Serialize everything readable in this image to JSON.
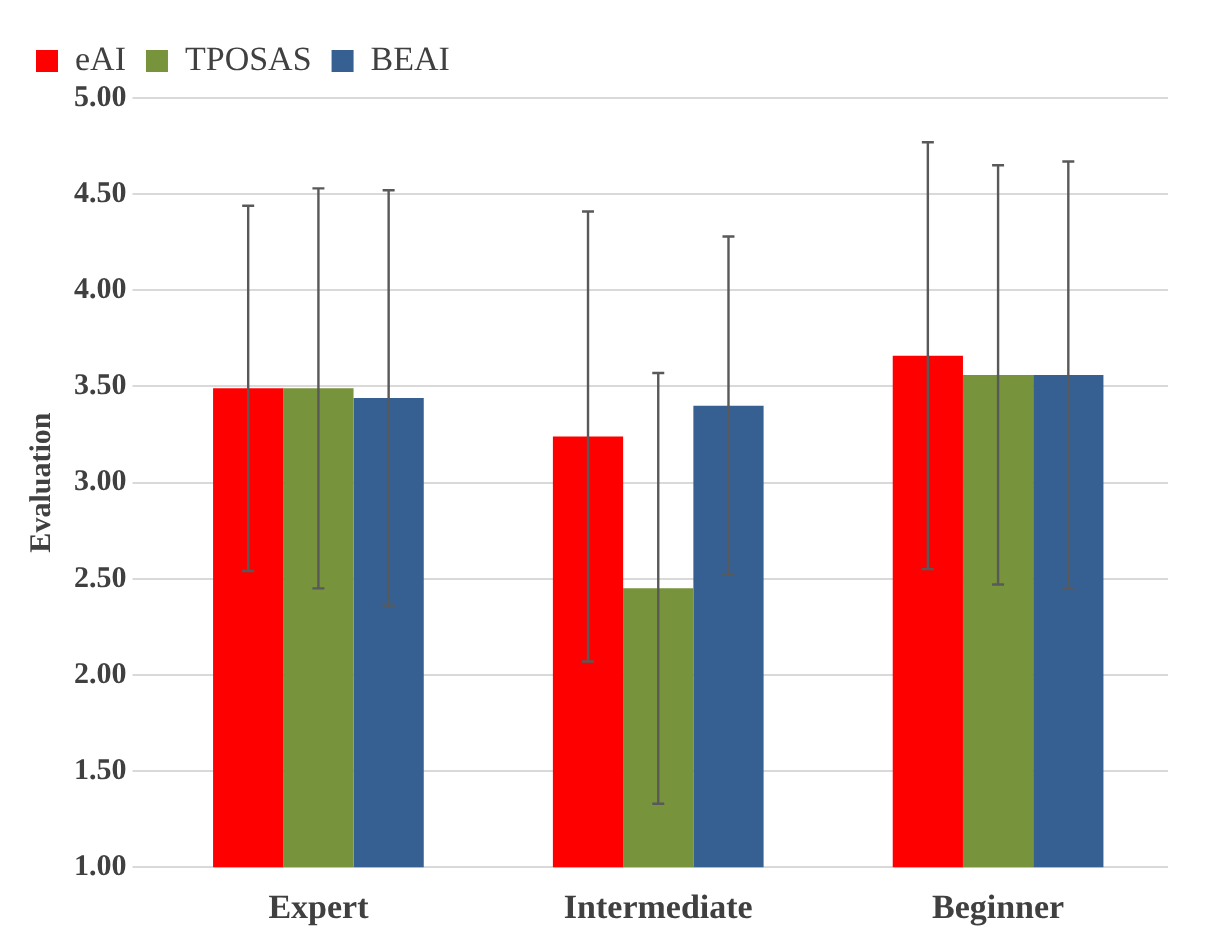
{
  "chart_data": {
    "type": "bar",
    "ylabel": "Evaluation",
    "categories": [
      "Expert",
      "Intermediate",
      "Beginner"
    ],
    "series": [
      {
        "name": "eAI",
        "color": "#ff0000",
        "values": [
          3.49,
          3.24,
          3.66
        ],
        "errors": [
          0.95,
          1.17,
          1.11
        ]
      },
      {
        "name": "TPOSAS",
        "color": "#77933c",
        "values": [
          3.49,
          2.45,
          3.56
        ],
        "errors": [
          1.04,
          1.12,
          1.09
        ]
      },
      {
        "name": "BEAI",
        "color": "#376092",
        "values": [
          3.44,
          3.4,
          3.56
        ],
        "errors": [
          1.08,
          0.88,
          1.11
        ]
      }
    ],
    "ylim": [
      1,
      5
    ],
    "yticks": [
      {
        "value": 1,
        "label": "1.00"
      },
      {
        "value": 1.5,
        "label": "1.50"
      },
      {
        "value": 2,
        "label": "2.00"
      },
      {
        "value": 2.5,
        "label": "2.50"
      },
      {
        "value": 3,
        "label": "3.00"
      },
      {
        "value": 3.5,
        "label": "3.50"
      },
      {
        "value": 4,
        "label": "4.00"
      },
      {
        "value": 4.5,
        "label": "4.50"
      },
      {
        "value": 5,
        "label": "5.00"
      }
    ],
    "grid": "y",
    "legend": "top left"
  }
}
